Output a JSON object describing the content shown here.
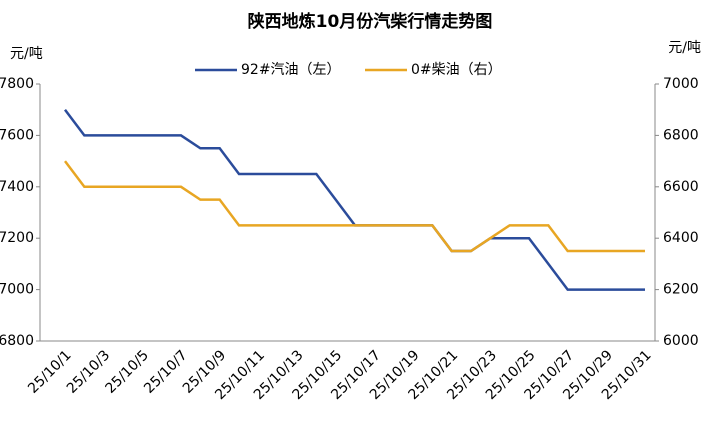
{
  "chart_data": {
    "type": "line",
    "title": "陕西地炼10月份汽柴行情走势图",
    "y_label": "元/吨",
    "y2_label": "元/吨",
    "categories": [
      "25/10/1",
      null,
      "25/10/3",
      null,
      "25/10/5",
      null,
      "25/10/7",
      null,
      "25/10/9",
      null,
      "25/10/11",
      null,
      "25/10/13",
      null,
      "25/10/15",
      null,
      "25/10/17",
      null,
      "25/10/19",
      null,
      "25/10/21",
      null,
      "25/10/23",
      null,
      "25/10/25",
      null,
      "25/10/27",
      null,
      "25/10/29",
      null,
      "25/10/31"
    ],
    "series": [
      {
        "name": "92#汽油（左）",
        "color": "#2b4c9b",
        "values": [
          7700,
          7600,
          7600,
          7600,
          7600,
          7600,
          7600,
          7550,
          7550,
          7450,
          7450,
          7450,
          7450,
          7450,
          7350,
          7250,
          7250,
          7250,
          7250,
          7250,
          7150,
          7150,
          7200,
          7200,
          7200,
          7100,
          7000,
          7000,
          7000,
          7000,
          7000
        ]
      },
      {
        "name": "0#柴油（右）",
        "color": "#e8a623",
        "axis": "y2",
        "values": [
          6700,
          6600,
          6600,
          6600,
          6600,
          6600,
          6600,
          6550,
          6550,
          6450,
          6450,
          6450,
          6450,
          6450,
          6450,
          6450,
          6450,
          6450,
          6450,
          6450,
          6350,
          6350,
          6400,
          6450,
          6450,
          6450,
          6350,
          6350,
          6350,
          6350,
          6350
        ]
      }
    ],
    "ylim": [
      6800,
      7800
    ],
    "yticks": [
      6800,
      7000,
      7200,
      7400,
      7600,
      7800
    ],
    "y2lim": [
      6000,
      7000
    ],
    "y2ticks": [
      6000,
      6200,
      6400,
      6600,
      6800,
      7000
    ]
  }
}
